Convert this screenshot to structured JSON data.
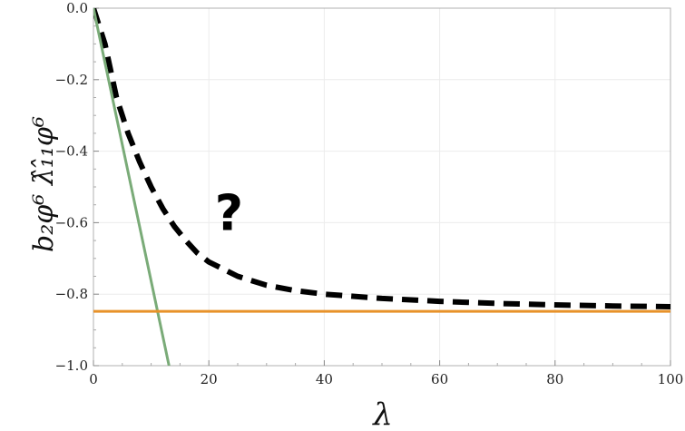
{
  "chart_data": {
    "type": "line",
    "title": "",
    "xlabel": "λ",
    "ylabel": "b₂φ⁶ λ̂₁̂₁φ⁶",
    "xlim": [
      0,
      100
    ],
    "ylim": [
      -1.0,
      0.0
    ],
    "x_ticks": [
      0,
      20,
      40,
      60,
      80,
      100
    ],
    "x_tick_labels": [
      "0",
      "20",
      "40",
      "60",
      "80",
      "100"
    ],
    "y_ticks": [
      0.0,
      -0.2,
      -0.4,
      -0.6,
      -0.8,
      -1.0
    ],
    "y_tick_labels": [
      "0.0",
      "−0.2",
      "−0.4",
      "−0.6",
      "−0.8",
      "−1.0"
    ],
    "grid": true,
    "legend": "none",
    "series": [
      {
        "style": "dashed",
        "color": "#000000",
        "x": [
          0,
          2,
          4,
          6,
          8,
          10,
          12,
          14,
          16,
          18,
          20,
          25,
          30,
          35,
          40,
          50,
          60,
          70,
          80,
          90,
          100
        ],
        "y": [
          0.0,
          -0.1,
          -0.25,
          -0.35,
          -0.43,
          -0.5,
          -0.56,
          -0.61,
          -0.65,
          -0.685,
          -0.71,
          -0.75,
          -0.775,
          -0.79,
          -0.8,
          -0.812,
          -0.82,
          -0.826,
          -0.83,
          -0.833,
          -0.835
        ]
      },
      {
        "style": "solid",
        "color": "#7aab78",
        "x": [
          0,
          13.1
        ],
        "y": [
          0.0,
          -1.0
        ]
      },
      {
        "style": "solid",
        "color": "#e8922a",
        "x": [
          0,
          100
        ],
        "y": [
          -0.848,
          -0.848
        ]
      }
    ],
    "annotations": [
      {
        "text": "?",
        "x": 23.5,
        "y": -0.62
      }
    ]
  },
  "colors": {
    "grid": "#ececec",
    "axis": "#b0b0b0",
    "dashed": "#000000",
    "green": "#7aab78",
    "orange": "#e8922a"
  }
}
